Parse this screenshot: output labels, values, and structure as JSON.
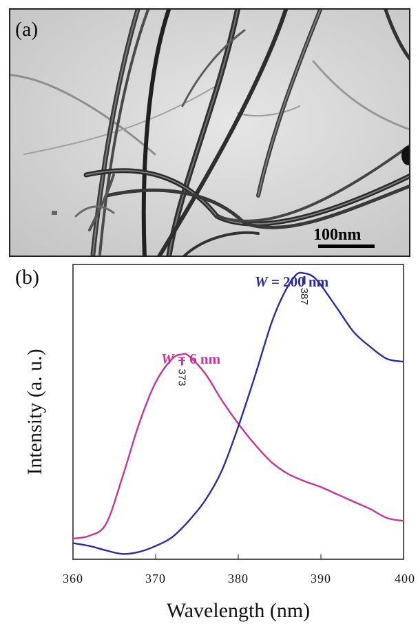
{
  "panel_a": {
    "label": "(a)",
    "scale_bar_label": "100nm"
  },
  "panel_b": {
    "label": "(b)"
  },
  "colors": {
    "series_w6": "#cc3399",
    "series_w200": "#2b2ba8",
    "axis": "#555555"
  },
  "chart_data": {
    "type": "line",
    "title": "",
    "xlabel": "Wavelength (nm)",
    "ylabel": "Intensity (a. u.)",
    "xlim": [
      360,
      400
    ],
    "ylim": [
      0,
      1
    ],
    "x_ticks": [
      "360",
      "370",
      "380",
      "390",
      "400"
    ],
    "y_ticks_shown": false,
    "series": [
      {
        "name": "W = 6 nm",
        "name_italic": "W",
        "name_rest": " = 6 nm",
        "color": "#cc3399",
        "peak_label": "373",
        "points": [
          [
            360,
            0.07
          ],
          [
            362,
            0.08
          ],
          [
            364,
            0.12
          ],
          [
            366,
            0.28
          ],
          [
            368,
            0.46
          ],
          [
            370,
            0.6
          ],
          [
            372,
            0.68
          ],
          [
            373.2,
            0.695
          ],
          [
            374,
            0.69
          ],
          [
            376,
            0.63
          ],
          [
            378,
            0.54
          ],
          [
            380,
            0.46
          ],
          [
            382,
            0.39
          ],
          [
            384,
            0.33
          ],
          [
            386,
            0.29
          ],
          [
            388,
            0.265
          ],
          [
            390,
            0.245
          ],
          [
            392,
            0.22
          ],
          [
            394,
            0.195
          ],
          [
            396,
            0.17
          ],
          [
            398,
            0.14
          ],
          [
            400,
            0.13
          ]
        ]
      },
      {
        "name": "W = 200 nm",
        "name_italic": "W",
        "name_rest": " = 200 nm",
        "color": "#2b2ba8",
        "peak_label": "387",
        "points": [
          [
            360,
            0.055
          ],
          [
            362,
            0.045
          ],
          [
            364,
            0.03
          ],
          [
            366,
            0.018
          ],
          [
            368,
            0.025
          ],
          [
            370,
            0.045
          ],
          [
            372,
            0.075
          ],
          [
            374,
            0.13
          ],
          [
            376,
            0.2
          ],
          [
            378,
            0.3
          ],
          [
            380,
            0.45
          ],
          [
            382,
            0.62
          ],
          [
            384,
            0.8
          ],
          [
            385.5,
            0.9
          ],
          [
            387,
            0.965
          ],
          [
            388,
            0.97
          ],
          [
            389,
            0.96
          ],
          [
            390,
            0.93
          ],
          [
            392,
            0.85
          ],
          [
            394,
            0.77
          ],
          [
            396,
            0.72
          ],
          [
            398,
            0.68
          ],
          [
            400,
            0.67
          ]
        ]
      }
    ]
  }
}
